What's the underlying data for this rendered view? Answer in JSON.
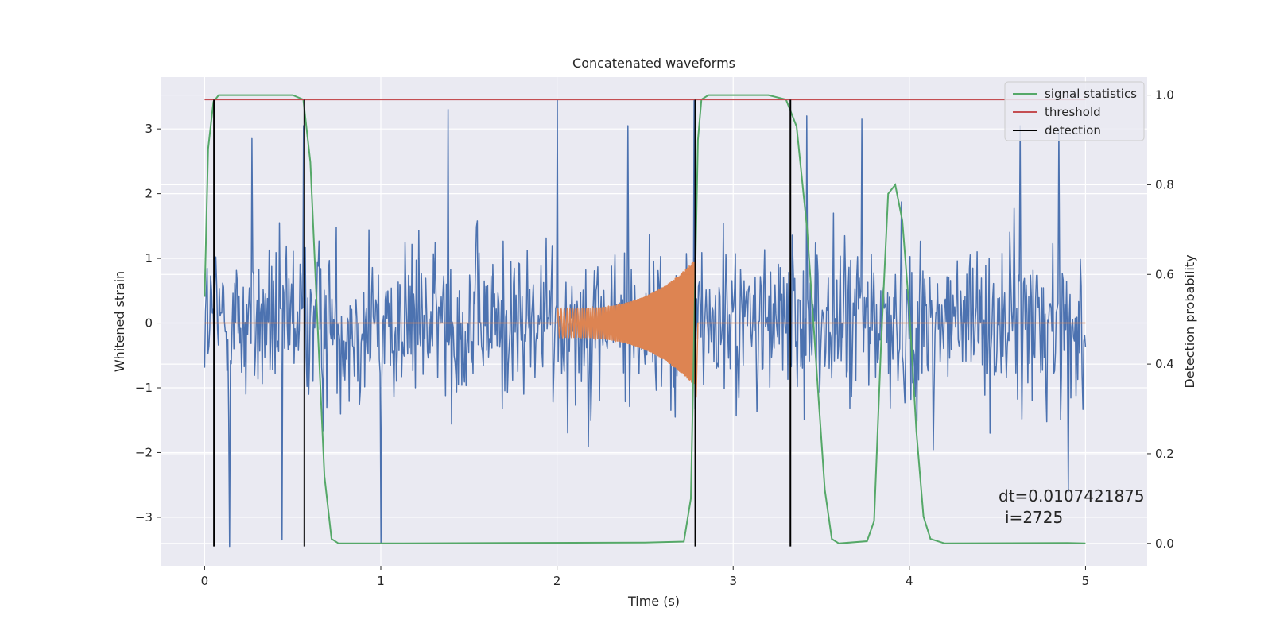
{
  "chart_data": {
    "type": "line",
    "title": "Concatenated waveforms",
    "xlabel": "Time (s)",
    "ylabel": "Whitened strain",
    "y2label": "Detection probability",
    "xlim": [
      -0.25,
      5.35
    ],
    "ylim": [
      -3.75,
      3.8
    ],
    "y2lim": [
      -0.05,
      1.04
    ],
    "xticks": [
      0,
      1,
      2,
      3,
      4,
      5
    ],
    "xtick_labels": [
      "0",
      "1",
      "2",
      "3",
      "4",
      "5"
    ],
    "yticks": [
      -3,
      -2,
      -1,
      0,
      1,
      2,
      3
    ],
    "ytick_labels": [
      "−3",
      "−2",
      "−1",
      "0",
      "1",
      "2",
      "3"
    ],
    "y2ticks": [
      0.0,
      0.2,
      0.4,
      0.6,
      0.8,
      1.0
    ],
    "y2tick_labels": [
      "0.0",
      "0.2",
      "0.4",
      "0.6",
      "0.8",
      "1.0"
    ],
    "grid": true,
    "legend_position": "top-right",
    "series": [
      {
        "name": "",
        "axis": "left",
        "color": "#4c72b0",
        "description": "whitened noisy strain",
        "x_range": [
          0,
          5
        ],
        "samples": 1024,
        "peak_points": [
          [
            0.14,
            -3.45
          ],
          [
            0.27,
            2.85
          ],
          [
            0.44,
            -3.35
          ],
          [
            0.56,
            3.05
          ],
          [
            1.0,
            -3.4
          ],
          [
            1.38,
            3.3
          ],
          [
            2.0,
            3.45
          ],
          [
            2.4,
            3.05
          ],
          [
            2.78,
            3.45
          ],
          [
            3.42,
            3.2
          ],
          [
            3.73,
            3.15
          ],
          [
            4.63,
            3.05
          ],
          [
            4.85,
            3.0
          ],
          [
            4.9,
            -2.6
          ]
        ]
      },
      {
        "name": "",
        "axis": "left",
        "color": "#dd8452",
        "description": "injected chirp waveform",
        "chirp_start": 2.0,
        "chirp_end": 2.79,
        "start_amplitude": 0.22,
        "end_amplitude": 1.0,
        "min_at_end": -1.15
      },
      {
        "name": "signal statistics",
        "axis": "right",
        "color": "#55a868",
        "x": [
          0.0,
          0.02,
          0.05,
          0.08,
          0.5,
          0.56,
          0.6,
          0.64,
          0.68,
          0.72,
          0.76,
          1.0,
          2.5,
          2.72,
          2.76,
          2.8,
          2.82,
          2.86,
          3.2,
          3.3,
          3.36,
          3.42,
          3.48,
          3.52,
          3.56,
          3.6,
          3.76,
          3.8,
          3.84,
          3.88,
          3.92,
          3.96,
          4.0,
          4.04,
          4.08,
          4.12,
          4.2,
          4.9,
          5.0
        ],
        "y": [
          0.55,
          0.88,
          0.985,
          1.0,
          1.0,
          0.99,
          0.85,
          0.5,
          0.15,
          0.01,
          0.0,
          0.0,
          0.002,
          0.004,
          0.1,
          0.9,
          0.99,
          1.0,
          1.0,
          0.99,
          0.93,
          0.7,
          0.35,
          0.12,
          0.01,
          0.0,
          0.005,
          0.05,
          0.45,
          0.78,
          0.8,
          0.72,
          0.52,
          0.25,
          0.06,
          0.01,
          0.0,
          0.001,
          0.0
        ]
      },
      {
        "name": "threshold",
        "axis": "right",
        "color": "#c44e52",
        "x": [
          0,
          5
        ],
        "y": [
          0.99,
          0.99
        ]
      },
      {
        "name": "detection",
        "axis": "left",
        "color": "#000000",
        "x": [
          0.053,
          0.566,
          2.785,
          3.325
        ],
        "y_range": [
          -3.45,
          3.45
        ]
      }
    ],
    "annotation": {
      "line1": "dt=0.0107421875",
      "line2": "i=2725"
    },
    "colors": {
      "background": "#eaeaf2",
      "grid": "#ffffff",
      "text": "#262626"
    }
  }
}
